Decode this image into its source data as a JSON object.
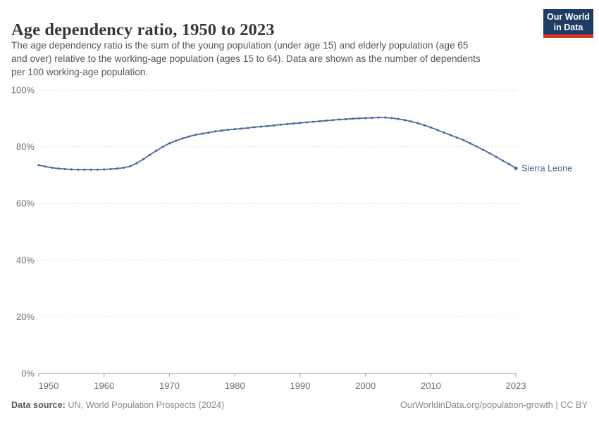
{
  "header": {
    "title": "Age dependency ratio, 1950 to 2023",
    "subtitle_lines": [
      "The age dependency ratio is the sum of the young population (under age 15) and elderly population (age 65",
      "and over) relative to the working-age population (ages 15 to 64). Data are shown as the number of dependents",
      "per 100 working-age population."
    ],
    "logo": {
      "line1": "Our World",
      "line2": "in Data",
      "bg": "#1d3d63",
      "bar": "#d8352a",
      "text_color": "#ffffff"
    }
  },
  "chart_data": {
    "type": "line",
    "title": "Age dependency ratio, 1950 to 2023",
    "xlabel": "",
    "ylabel": "",
    "xlim": [
      1950,
      2023
    ],
    "ylim": [
      0,
      100
    ],
    "grid": "horizontal-dashed",
    "legend": "end-of-line-label",
    "x_ticks": [
      1950,
      1960,
      1970,
      1980,
      1990,
      2000,
      2010,
      2023
    ],
    "y_ticks": [
      0,
      20,
      40,
      60,
      80,
      100
    ],
    "y_tick_suffix": "%",
    "series": [
      {
        "name": "Sierra Leone",
        "color": "#4c6a9c",
        "years": [
          1950,
          1951,
          1952,
          1953,
          1954,
          1955,
          1956,
          1957,
          1958,
          1959,
          1960,
          1961,
          1962,
          1963,
          1964,
          1965,
          1966,
          1967,
          1968,
          1969,
          1970,
          1971,
          1972,
          1973,
          1974,
          1975,
          1976,
          1977,
          1978,
          1979,
          1980,
          1981,
          1982,
          1983,
          1984,
          1985,
          1986,
          1987,
          1988,
          1989,
          1990,
          1991,
          1992,
          1993,
          1994,
          1995,
          1996,
          1997,
          1998,
          1999,
          2000,
          2001,
          2002,
          2003,
          2004,
          2005,
          2006,
          2007,
          2008,
          2009,
          2010,
          2011,
          2012,
          2013,
          2014,
          2015,
          2016,
          2017,
          2018,
          2019,
          2020,
          2021,
          2022,
          2023
        ],
        "values": [
          73.5,
          73.0,
          72.6,
          72.3,
          72.1,
          72.0,
          71.9,
          71.9,
          71.9,
          71.9,
          72.0,
          72.1,
          72.3,
          72.6,
          73.1,
          74.2,
          75.6,
          77.1,
          78.6,
          80.0,
          81.2,
          82.1,
          82.9,
          83.6,
          84.2,
          84.6,
          85.0,
          85.4,
          85.7,
          86.0,
          86.2,
          86.4,
          86.6,
          86.9,
          87.1,
          87.3,
          87.5,
          87.8,
          88.0,
          88.2,
          88.4,
          88.6,
          88.8,
          89.0,
          89.2,
          89.4,
          89.6,
          89.7,
          89.9,
          90.0,
          90.1,
          90.2,
          90.3,
          90.3,
          90.1,
          89.8,
          89.4,
          88.9,
          88.3,
          87.6,
          86.8,
          85.9,
          85.0,
          84.1,
          83.2,
          82.3,
          81.2,
          80.1,
          78.9,
          77.7,
          76.4,
          75.1,
          73.8,
          72.4
        ]
      }
    ]
  },
  "footer": {
    "source_label": "Data source:",
    "source_value": " UN, World Population Prospects (2024)",
    "credit": "OurWorldinData.org/population-growth | CC BY"
  },
  "colors": {
    "line": "#4c6a9c",
    "grid": "#dedede",
    "axis": "#9e9e9e",
    "tick_label": "#6e6e6e"
  }
}
